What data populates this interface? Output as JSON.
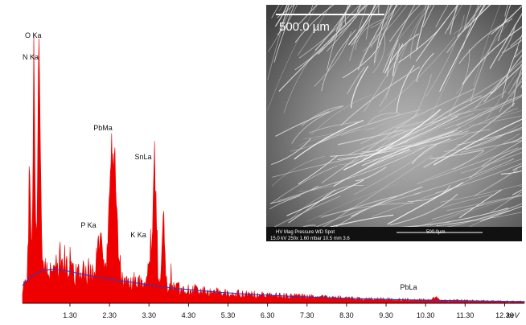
{
  "chart_data": {
    "type": "bar",
    "title": "",
    "xlabel": "",
    "xunit": "keV",
    "ylabel": "",
    "xlim": [
      0.1,
      12.8
    ],
    "ylim": [
      0,
      100
    ],
    "grid": false,
    "x_ticks": [
      1.3,
      2.3,
      3.3,
      4.3,
      5.3,
      6.3,
      7.3,
      8.3,
      9.3,
      10.3,
      11.3,
      12.3
    ],
    "x_tick_labels": [
      "1.30",
      "2.30",
      "3.30",
      "4.30",
      "5.30",
      "6.30",
      "7.30",
      "8.30",
      "9.30",
      "10.30",
      "11.30",
      "12.30"
    ],
    "peaks": [
      {
        "label": "N Ka",
        "x": 0.39,
        "y": 86
      },
      {
        "label": "O Ka",
        "x": 0.52,
        "y": 96
      },
      {
        "label": "P Ka",
        "x": 2.01,
        "y": 19
      },
      {
        "label": "PbMa",
        "x": 2.35,
        "y": 52
      },
      {
        "label": "SnLa",
        "x": 3.44,
        "y": 48
      },
      {
        "label": "K Ka",
        "x": 3.31,
        "y": 16
      },
      {
        "label": "PbLa",
        "x": 10.55,
        "y": 2
      }
    ],
    "background_series": {
      "color": "#3333cc",
      "x": [
        0.1,
        0.3,
        0.6,
        0.9,
        1.2,
        1.6,
        2.0,
        2.5,
        3.0,
        3.5,
        4.0,
        5.0,
        6.0,
        7.0,
        8.0,
        9.0,
        10.0,
        11.0,
        12.0,
        12.8
      ],
      "y": [
        6,
        9,
        11,
        11.5,
        11,
        9.8,
        8.8,
        7.8,
        6.8,
        5.8,
        5.0,
        3.8,
        2.9,
        2.3,
        1.8,
        1.4,
        1.1,
        0.9,
        0.7,
        0.6
      ]
    }
  },
  "colors": {
    "spectrum": "#ee0000",
    "background_fit": "#3333cc",
    "axis": "#111111"
  },
  "sem_image": {
    "scale_bar_label": "500.0 µm",
    "footer": {
      "header": "HV    Mag   Pressure    WD    Spot",
      "values": "15.0 kV 250x 1.60   mbar 10.5 mm   3.6",
      "scale": "500.0µm"
    }
  }
}
